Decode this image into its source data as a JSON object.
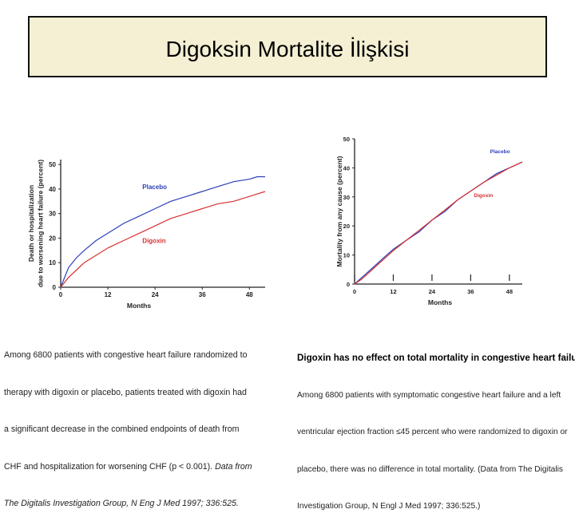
{
  "slide": {
    "title": "Digoksin Mortalite İlişkisi"
  },
  "colors": {
    "placebo": "#2a3fb8",
    "digoxin": "#d83030",
    "axis": "#222222"
  },
  "chart_data": [
    {
      "type": "line",
      "xlabel": "Months",
      "ylabel": [
        "Death or hospitalization",
        "due to worsening heart failure (percent)"
      ],
      "xticks": [
        "0",
        "12",
        "24",
        "36",
        "48"
      ],
      "yticks": [
        "0",
        "10",
        "20",
        "30",
        "40",
        "50"
      ],
      "xlim": [
        0,
        52
      ],
      "ylim": [
        0,
        52
      ],
      "grid": false,
      "series": [
        {
          "name": "Placebo",
          "x": [
            0,
            2,
            4,
            6,
            9,
            12,
            16,
            20,
            24,
            28,
            32,
            36,
            40,
            44,
            48,
            50,
            52
          ],
          "y": [
            0,
            8,
            12,
            15,
            19,
            22,
            26,
            29,
            32,
            35,
            37,
            39,
            41,
            43,
            44,
            45,
            45
          ]
        },
        {
          "name": "Digoxin",
          "x": [
            0,
            2,
            4,
            6,
            9,
            12,
            16,
            20,
            24,
            28,
            32,
            36,
            40,
            44,
            48,
            50,
            52
          ],
          "y": [
            0,
            4,
            7,
            10,
            13,
            16,
            19,
            22,
            25,
            28,
            30,
            32,
            34,
            35,
            37,
            38,
            39
          ]
        }
      ],
      "caption": {
        "lines": [
          "Among 6800 patients with congestive heart failure randomized to",
          "therapy with digoxin or placebo, patients treated with digoxin had",
          "a significant decrease in the combined endpoints of death from",
          "CHF and hospitalization for worsening CHF (p < 0.001). "
        ],
        "inline_italic": "Data from",
        "italic_line": "The Digitalis Investigation Group, N Eng J Med 1997; 336:525."
      }
    },
    {
      "type": "line",
      "xlabel": "Months",
      "ylabel": "Mortality from any cause (percent)",
      "xticks": [
        "0",
        "12",
        "24",
        "36",
        "48"
      ],
      "yticks": [
        "0",
        "10",
        "20",
        "30",
        "40",
        "50"
      ],
      "xlim": [
        0,
        52
      ],
      "ylim": [
        0,
        50
      ],
      "grid": false,
      "series": [
        {
          "name": "Placebo",
          "x": [
            0,
            2,
            4,
            6,
            9,
            12,
            16,
            20,
            24,
            28,
            32,
            36,
            40,
            44,
            48,
            52
          ],
          "y": [
            0,
            2,
            4,
            6,
            9,
            12,
            15,
            18,
            22,
            25,
            29,
            32,
            35,
            38,
            40,
            42
          ]
        },
        {
          "name": "Digoxin",
          "x": [
            0,
            2,
            4,
            6,
            9,
            12,
            16,
            20,
            24,
            28,
            32,
            36,
            40,
            44,
            48,
            52
          ],
          "y": [
            0,
            1.5,
            3.5,
            5.5,
            8.5,
            11.5,
            15,
            18.5,
            22,
            25.5,
            29,
            32,
            35,
            37.5,
            40,
            42
          ]
        }
      ],
      "caption": {
        "title": "Digoxin has no effect on total mortality in congestive heart failure",
        "lines": [
          "Among 6800 patients with symptomatic congestive heart failure and a left",
          "ventricular ejection fraction ≤45 percent who were randomized to digoxin or",
          "placebo, there was no difference in total mortality. (Data from The Digitalis",
          "Investigation Group, N Engl J Med 1997; 336:525.)"
        ]
      }
    }
  ]
}
